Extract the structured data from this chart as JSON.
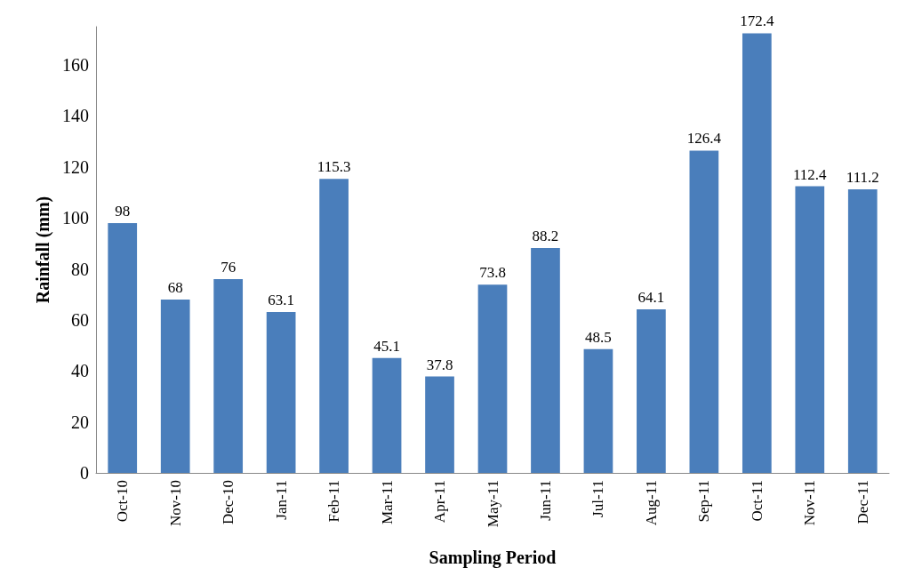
{
  "chart_data": {
    "type": "bar",
    "xlabel": "Sampling Period",
    "ylabel": "Rainfall (mm)",
    "categories": [
      "Oct-10",
      "Nov-10",
      "Dec-10",
      "Jan-11",
      "Feb-11",
      "Mar-11",
      "Apr-11",
      "May-11",
      "Jun-11",
      "Jul-11",
      "Aug-11",
      "Sep-11",
      "Oct-11",
      "Nov-11",
      "Dec-11"
    ],
    "values": [
      98,
      68,
      76,
      63.1,
      115.3,
      45.1,
      37.8,
      73.8,
      88.2,
      48.5,
      64.1,
      126.4,
      172.4,
      112.4,
      111.2
    ],
    "color": "#4a7ebb",
    "ylim": [
      0,
      175
    ],
    "yticks": [
      0,
      20,
      40,
      60,
      80,
      100,
      120,
      140,
      160
    ],
    "grid": false,
    "data_labels": true
  }
}
